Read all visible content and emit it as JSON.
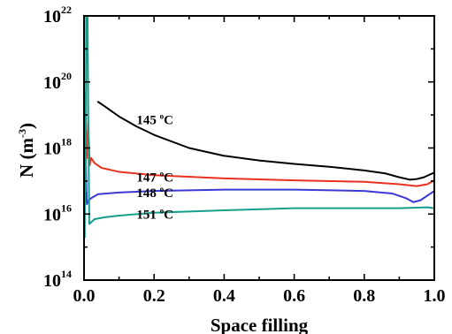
{
  "chart_data": {
    "type": "line",
    "title": "",
    "xlabel": "Space filling",
    "ylabel": {
      "base": "N (m",
      "exponent": "-3",
      "close": ")"
    },
    "xlim": [
      0.0,
      1.0
    ],
    "ylim": [
      100000000000000.0,
      1e+22
    ],
    "y_scale": "log",
    "grid": false,
    "x_ticks": [
      {
        "value": 0.0,
        "label": "0.0"
      },
      {
        "value": 0.2,
        "label": "0.2"
      },
      {
        "value": 0.4,
        "label": "0.4"
      },
      {
        "value": 0.6,
        "label": "0.6"
      },
      {
        "value": 0.8,
        "label": "0.8"
      },
      {
        "value": 1.0,
        "label": "1.0"
      }
    ],
    "y_ticks": [
      {
        "value": 100000000000000.0,
        "base": "10",
        "exponent": "14"
      },
      {
        "value": 1e+16,
        "base": "10",
        "exponent": "16"
      },
      {
        "value": 1e+18,
        "base": "10",
        "exponent": "18"
      },
      {
        "value": 1e+20,
        "base": "10",
        "exponent": "20"
      },
      {
        "value": 1e+22,
        "base": "10",
        "exponent": "22"
      }
    ],
    "series": [
      {
        "label": {
          "number": "145 ",
          "degree": "o",
          "unit": "C"
        },
        "color": "#000000",
        "label_at": [
          0.15,
          7.1e+18
        ],
        "points": [
          [
            0.04,
            2.5e+19
          ],
          [
            0.06,
            1.8e+19
          ],
          [
            0.1,
            9e+18
          ],
          [
            0.15,
            4.5e+18
          ],
          [
            0.2,
            2.5e+18
          ],
          [
            0.3,
            1e+18
          ],
          [
            0.4,
            5.8e+17
          ],
          [
            0.5,
            4.2e+17
          ],
          [
            0.6,
            3.3e+17
          ],
          [
            0.7,
            2.7e+17
          ],
          [
            0.8,
            2.1e+17
          ],
          [
            0.86,
            1.7e+17
          ],
          [
            0.9,
            1.3e+17
          ],
          [
            0.93,
            1.1e+17
          ],
          [
            0.95,
            1.15e+17
          ],
          [
            0.97,
            1.3e+17
          ],
          [
            1.0,
            1.8e+17
          ]
        ]
      },
      {
        "label": {
          "number": "147 ",
          "degree": "o",
          "unit": "C"
        },
        "color": "#e8321f",
        "label_at": [
          0.15,
          1.32e+17
        ],
        "points": [
          [
            0.0,
            3e+18
          ],
          [
            0.004,
            8e+18
          ],
          [
            0.008,
            5e+17
          ],
          [
            0.012,
            6e+18
          ],
          [
            0.016,
            3e+17
          ],
          [
            0.02,
            5e+17
          ],
          [
            0.03,
            3.5e+17
          ],
          [
            0.05,
            2.5e+17
          ],
          [
            0.1,
            1.9e+17
          ],
          [
            0.2,
            1.5e+17
          ],
          [
            0.4,
            1.2e+17
          ],
          [
            0.6,
            1.05e+17
          ],
          [
            0.8,
            9.5e+16
          ],
          [
            0.9,
            8e+16
          ],
          [
            0.95,
            7e+16
          ],
          [
            0.98,
            8e+16
          ],
          [
            1.0,
            1.05e+17
          ]
        ]
      },
      {
        "label": {
          "number": "148 ",
          "degree": "o",
          "unit": "C"
        },
        "color": "#3a3ad6",
        "label_at": [
          0.15,
          4.5e+16
        ],
        "points": [
          [
            0.0,
            1.2e+16
          ],
          [
            0.004,
            1e+18
          ],
          [
            0.008,
            2e+16
          ],
          [
            0.012,
            2.5e+16
          ],
          [
            0.02,
            3e+16
          ],
          [
            0.04,
            4e+16
          ],
          [
            0.1,
            4.5e+16
          ],
          [
            0.2,
            5e+16
          ],
          [
            0.4,
            5.5e+16
          ],
          [
            0.6,
            5.5e+16
          ],
          [
            0.8,
            5e+16
          ],
          [
            0.88,
            4.2e+16
          ],
          [
            0.92,
            3e+16
          ],
          [
            0.94,
            2.3e+16
          ],
          [
            0.96,
            2.6e+16
          ],
          [
            1.0,
            5e+16
          ]
        ]
      },
      {
        "label": {
          "number": "151 ",
          "degree": "o",
          "unit": "C"
        },
        "color": "#169e8c",
        "label_at": [
          0.15,
          1e+16
        ],
        "points": [
          [
            0.0,
            5000000000000000.0
          ],
          [
            0.002,
            2000000000000000.0
          ],
          [
            0.004,
            5e+19
          ],
          [
            0.005,
            5e+16
          ],
          [
            0.006,
            1e+22
          ],
          [
            0.01,
            1e+22
          ],
          [
            0.012,
            1e+19
          ],
          [
            0.015,
            5000000000000000.0
          ],
          [
            0.03,
            7000000000000000.0
          ],
          [
            0.06,
            8000000000000000.0
          ],
          [
            0.1,
            9000000000000000.0
          ],
          [
            0.2,
            1.1e+16
          ],
          [
            0.4,
            1.3e+16
          ],
          [
            0.6,
            1.5e+16
          ],
          [
            0.8,
            1.5e+16
          ],
          [
            0.9,
            1.5e+16
          ],
          [
            0.98,
            1.6e+16
          ],
          [
            1.0,
            1.5e+16
          ]
        ]
      }
    ]
  }
}
